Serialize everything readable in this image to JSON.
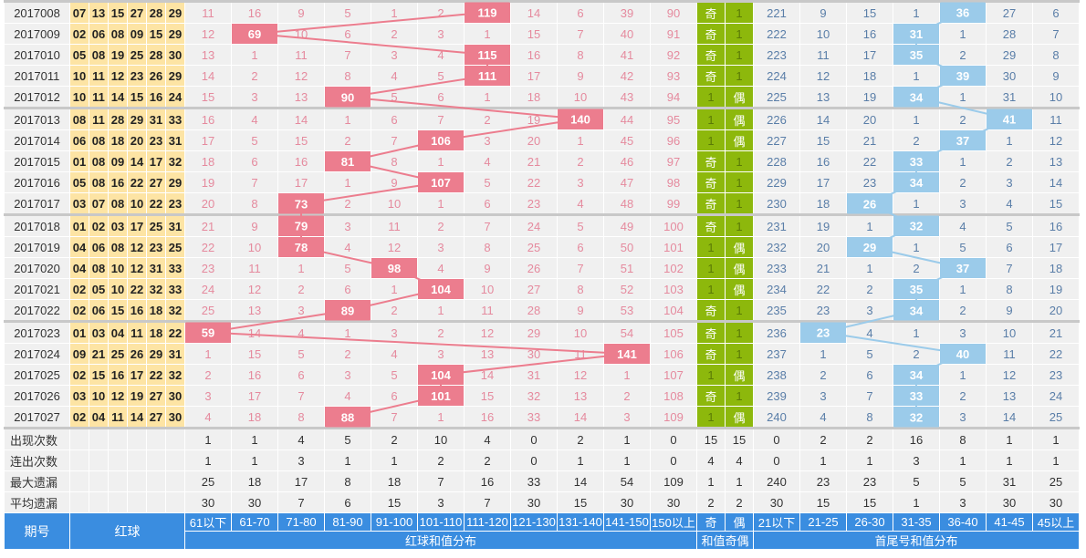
{
  "rows": [
    {
      "period": "2017008",
      "balls": [
        "07",
        "13",
        "15",
        "27",
        "28",
        "29"
      ],
      "red_sum": [
        "11",
        "16",
        "9",
        "5",
        "1",
        "2",
        "119",
        "14",
        "6",
        "39",
        "90"
      ],
      "hit_red": 6,
      "oe": [
        "奇",
        "1"
      ],
      "hit_oe": 0,
      "fl": [
        "221",
        "9",
        "15",
        "1",
        "36",
        "27",
        "6"
      ],
      "hit_fl": 4,
      "grp": true
    },
    {
      "period": "2017009",
      "balls": [
        "02",
        "06",
        "08",
        "09",
        "15",
        "29"
      ],
      "red_sum": [
        "12",
        "69",
        "10",
        "6",
        "2",
        "3",
        "1",
        "15",
        "7",
        "40",
        "91"
      ],
      "hit_red": 1,
      "oe": [
        "奇",
        "1"
      ],
      "hit_oe": 0,
      "fl": [
        "222",
        "10",
        "16",
        "31",
        "1",
        "28",
        "7"
      ],
      "hit_fl": 3
    },
    {
      "period": "2017010",
      "balls": [
        "05",
        "08",
        "19",
        "25",
        "28",
        "30"
      ],
      "red_sum": [
        "13",
        "1",
        "11",
        "7",
        "3",
        "4",
        "115",
        "16",
        "8",
        "41",
        "92"
      ],
      "hit_red": 6,
      "oe": [
        "奇",
        "1"
      ],
      "hit_oe": 0,
      "fl": [
        "223",
        "11",
        "17",
        "35",
        "2",
        "29",
        "8"
      ],
      "hit_fl": 3
    },
    {
      "period": "2017011",
      "balls": [
        "10",
        "11",
        "12",
        "23",
        "26",
        "29"
      ],
      "red_sum": [
        "14",
        "2",
        "12",
        "8",
        "4",
        "5",
        "111",
        "17",
        "9",
        "42",
        "93"
      ],
      "hit_red": 6,
      "oe": [
        "奇",
        "1"
      ],
      "hit_oe": 0,
      "fl": [
        "224",
        "12",
        "18",
        "1",
        "39",
        "30",
        "9"
      ],
      "hit_fl": 4
    },
    {
      "period": "2017012",
      "balls": [
        "10",
        "11",
        "14",
        "15",
        "16",
        "24"
      ],
      "red_sum": [
        "15",
        "3",
        "13",
        "90",
        "5",
        "6",
        "1",
        "18",
        "10",
        "43",
        "94"
      ],
      "hit_red": 3,
      "oe": [
        "1",
        "偶"
      ],
      "hit_oe": 1,
      "fl": [
        "225",
        "13",
        "19",
        "34",
        "1",
        "31",
        "10"
      ],
      "hit_fl": 3
    },
    {
      "period": "2017013",
      "balls": [
        "08",
        "11",
        "28",
        "29",
        "31",
        "33"
      ],
      "red_sum": [
        "16",
        "4",
        "14",
        "1",
        "6",
        "7",
        "2",
        "19",
        "140",
        "44",
        "95"
      ],
      "hit_red": 8,
      "oe": [
        "1",
        "偶"
      ],
      "hit_oe": 1,
      "fl": [
        "226",
        "14",
        "20",
        "1",
        "2",
        "41",
        "11"
      ],
      "hit_fl": 5,
      "grp": true
    },
    {
      "period": "2017014",
      "balls": [
        "06",
        "08",
        "18",
        "20",
        "23",
        "31"
      ],
      "red_sum": [
        "17",
        "5",
        "15",
        "2",
        "7",
        "106",
        "3",
        "20",
        "1",
        "45",
        "96"
      ],
      "hit_red": 5,
      "oe": [
        "1",
        "偶"
      ],
      "hit_oe": 1,
      "fl": [
        "227",
        "15",
        "21",
        "2",
        "37",
        "1",
        "12"
      ],
      "hit_fl": 4
    },
    {
      "period": "2017015",
      "balls": [
        "01",
        "08",
        "09",
        "14",
        "17",
        "32"
      ],
      "red_sum": [
        "18",
        "6",
        "16",
        "81",
        "8",
        "1",
        "4",
        "21",
        "2",
        "46",
        "97"
      ],
      "hit_red": 3,
      "oe": [
        "奇",
        "1"
      ],
      "hit_oe": 0,
      "fl": [
        "228",
        "16",
        "22",
        "33",
        "1",
        "2",
        "13"
      ],
      "hit_fl": 3
    },
    {
      "period": "2017016",
      "balls": [
        "05",
        "08",
        "16",
        "22",
        "27",
        "29"
      ],
      "red_sum": [
        "19",
        "7",
        "17",
        "1",
        "9",
        "107",
        "5",
        "22",
        "3",
        "47",
        "98"
      ],
      "hit_red": 5,
      "oe": [
        "奇",
        "1"
      ],
      "hit_oe": 0,
      "fl": [
        "229",
        "17",
        "23",
        "34",
        "2",
        "3",
        "14"
      ],
      "hit_fl": 3
    },
    {
      "period": "2017017",
      "balls": [
        "03",
        "07",
        "08",
        "10",
        "22",
        "23"
      ],
      "red_sum": [
        "20",
        "8",
        "73",
        "2",
        "10",
        "1",
        "6",
        "23",
        "4",
        "48",
        "99"
      ],
      "hit_red": 2,
      "oe": [
        "奇",
        "1"
      ],
      "hit_oe": 0,
      "fl": [
        "230",
        "18",
        "26",
        "1",
        "3",
        "4",
        "15"
      ],
      "hit_fl": 2
    },
    {
      "period": "2017018",
      "balls": [
        "01",
        "02",
        "03",
        "17",
        "25",
        "31"
      ],
      "red_sum": [
        "21",
        "9",
        "79",
        "3",
        "11",
        "2",
        "7",
        "24",
        "5",
        "49",
        "100"
      ],
      "hit_red": 2,
      "oe": [
        "奇",
        "1"
      ],
      "hit_oe": 0,
      "fl": [
        "231",
        "19",
        "1",
        "32",
        "4",
        "5",
        "16"
      ],
      "hit_fl": 3,
      "grp": true
    },
    {
      "period": "2017019",
      "balls": [
        "04",
        "06",
        "08",
        "12",
        "23",
        "25"
      ],
      "red_sum": [
        "22",
        "10",
        "78",
        "4",
        "12",
        "3",
        "8",
        "25",
        "6",
        "50",
        "101"
      ],
      "hit_red": 2,
      "oe": [
        "1",
        "偶"
      ],
      "hit_oe": 1,
      "fl": [
        "232",
        "20",
        "29",
        "1",
        "5",
        "6",
        "17"
      ],
      "hit_fl": 2
    },
    {
      "period": "2017020",
      "balls": [
        "04",
        "08",
        "10",
        "12",
        "31",
        "33"
      ],
      "red_sum": [
        "23",
        "11",
        "1",
        "5",
        "98",
        "4",
        "9",
        "26",
        "7",
        "51",
        "102"
      ],
      "hit_red": 4,
      "oe": [
        "1",
        "偶"
      ],
      "hit_oe": 1,
      "fl": [
        "233",
        "21",
        "1",
        "2",
        "37",
        "7",
        "18"
      ],
      "hit_fl": 4
    },
    {
      "period": "2017021",
      "balls": [
        "02",
        "05",
        "10",
        "22",
        "32",
        "33"
      ],
      "red_sum": [
        "24",
        "12",
        "2",
        "6",
        "1",
        "104",
        "10",
        "27",
        "8",
        "52",
        "103"
      ],
      "hit_red": 5,
      "oe": [
        "1",
        "偶"
      ],
      "hit_oe": 1,
      "fl": [
        "234",
        "22",
        "2",
        "35",
        "1",
        "8",
        "19"
      ],
      "hit_fl": 3
    },
    {
      "period": "2017022",
      "balls": [
        "02",
        "06",
        "15",
        "16",
        "18",
        "32"
      ],
      "red_sum": [
        "25",
        "13",
        "3",
        "89",
        "2",
        "1",
        "11",
        "28",
        "9",
        "53",
        "104"
      ],
      "hit_red": 3,
      "oe": [
        "奇",
        "1"
      ],
      "hit_oe": 0,
      "fl": [
        "235",
        "23",
        "3",
        "34",
        "2",
        "9",
        "20"
      ],
      "hit_fl": 3
    },
    {
      "period": "2017023",
      "balls": [
        "01",
        "03",
        "04",
        "11",
        "18",
        "22"
      ],
      "red_sum": [
        "59",
        "14",
        "4",
        "1",
        "3",
        "2",
        "12",
        "29",
        "10",
        "54",
        "105"
      ],
      "hit_red": 0,
      "oe": [
        "奇",
        "1"
      ],
      "hit_oe": 0,
      "fl": [
        "236",
        "23",
        "4",
        "1",
        "3",
        "10",
        "21"
      ],
      "hit_fl": 1,
      "grp": true
    },
    {
      "period": "2017024",
      "balls": [
        "09",
        "21",
        "25",
        "26",
        "29",
        "31"
      ],
      "red_sum": [
        "1",
        "15",
        "5",
        "2",
        "4",
        "3",
        "13",
        "30",
        "11",
        "141",
        "106"
      ],
      "hit_red": 9,
      "oe": [
        "奇",
        "1"
      ],
      "hit_oe": 0,
      "fl": [
        "237",
        "1",
        "5",
        "2",
        "40",
        "11",
        "22"
      ],
      "hit_fl": 4
    },
    {
      "period": "2017025",
      "balls": [
        "02",
        "15",
        "16",
        "17",
        "22",
        "32"
      ],
      "red_sum": [
        "2",
        "16",
        "6",
        "3",
        "5",
        "104",
        "14",
        "31",
        "12",
        "1",
        "107"
      ],
      "hit_red": 5,
      "oe": [
        "1",
        "偶"
      ],
      "hit_oe": 1,
      "fl": [
        "238",
        "2",
        "6",
        "34",
        "1",
        "12",
        "23"
      ],
      "hit_fl": 3
    },
    {
      "period": "2017026",
      "balls": [
        "03",
        "10",
        "12",
        "19",
        "27",
        "30"
      ],
      "red_sum": [
        "3",
        "17",
        "7",
        "4",
        "6",
        "101",
        "15",
        "32",
        "13",
        "2",
        "108"
      ],
      "hit_red": 5,
      "oe": [
        "奇",
        "1"
      ],
      "hit_oe": 0,
      "fl": [
        "239",
        "3",
        "7",
        "33",
        "2",
        "13",
        "24"
      ],
      "hit_fl": 3
    },
    {
      "period": "2017027",
      "balls": [
        "02",
        "04",
        "11",
        "14",
        "27",
        "30"
      ],
      "red_sum": [
        "4",
        "18",
        "8",
        "88",
        "7",
        "1",
        "16",
        "33",
        "14",
        "3",
        "109"
      ],
      "hit_red": 3,
      "oe": [
        "1",
        "偶"
      ],
      "hit_oe": 1,
      "fl": [
        "240",
        "4",
        "8",
        "32",
        "3",
        "14",
        "25"
      ],
      "hit_fl": 3
    }
  ],
  "stats": [
    {
      "label": "出现次数",
      "red_sum": [
        "1",
        "1",
        "4",
        "5",
        "2",
        "10",
        "4",
        "0",
        "2",
        "1",
        "0"
      ],
      "oe": [
        "15",
        "15"
      ],
      "fl": [
        "0",
        "2",
        "2",
        "16",
        "8",
        "1",
        "1"
      ]
    },
    {
      "label": "连出次数",
      "red_sum": [
        "1",
        "1",
        "3",
        "1",
        "1",
        "2",
        "2",
        "0",
        "1",
        "1",
        "0"
      ],
      "oe": [
        "4",
        "4"
      ],
      "fl": [
        "0",
        "1",
        "1",
        "3",
        "1",
        "1",
        "1"
      ]
    },
    {
      "label": "最大遗漏",
      "red_sum": [
        "25",
        "18",
        "17",
        "8",
        "18",
        "7",
        "16",
        "33",
        "14",
        "54",
        "109"
      ],
      "oe": [
        "1",
        "1"
      ],
      "fl": [
        "240",
        "23",
        "23",
        "5",
        "5",
        "31",
        "25"
      ]
    },
    {
      "label": "平均遗漏",
      "red_sum": [
        "30",
        "30",
        "7",
        "6",
        "15",
        "3",
        "7",
        "30",
        "15",
        "30",
        "30"
      ],
      "oe": [
        "2",
        "2"
      ],
      "fl": [
        "30",
        "15",
        "15",
        "1",
        "3",
        "30",
        "30"
      ]
    }
  ],
  "header": {
    "period_label": "期号",
    "red_label": "红球",
    "red_sum_ranges": [
      "61以下",
      "61-70",
      "71-80",
      "81-90",
      "91-100",
      "101-110",
      "111-120",
      "121-130",
      "131-140",
      "141-150",
      "150以上"
    ],
    "red_sum_group": "红球和值分布",
    "oe_cols": [
      "奇",
      "偶"
    ],
    "oe_group": "和值奇偶",
    "fl_ranges": [
      "21以下",
      "21-25",
      "26-30",
      "31-35",
      "36-40",
      "41-45",
      "45以上"
    ],
    "fl_group": "首尾号和值分布"
  },
  "colors": {
    "red_hit": "#ec7d8e",
    "blue_hit": "#9bcbea",
    "oe_bg": "#8db80c",
    "ball_bg": "#fde4a4",
    "header_bg": "#3a8de0"
  }
}
